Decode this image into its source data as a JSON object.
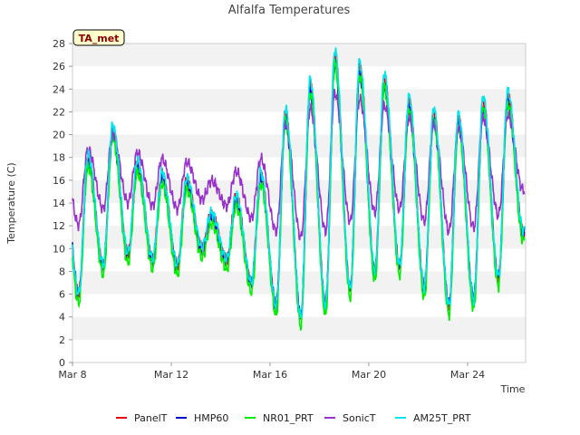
{
  "chart_data": {
    "type": "line",
    "title": "Alfalfa Temperatures",
    "badge": "TA_met",
    "xlabel": "Time",
    "ylabel": "Temperature (C)",
    "xlim": [
      0,
      18.35
    ],
    "ylim": [
      0,
      28
    ],
    "y_ticks": [
      0,
      2,
      4,
      6,
      8,
      10,
      12,
      14,
      16,
      18,
      20,
      22,
      24,
      26,
      28
    ],
    "x_ticks": [
      {
        "value": 0,
        "label": "Mar 8"
      },
      {
        "value": 4,
        "label": "Mar 12"
      },
      {
        "value": 8,
        "label": "Mar 16"
      },
      {
        "value": 12,
        "label": "Mar 20"
      },
      {
        "value": 16,
        "label": "Mar 24"
      }
    ],
    "grid": true,
    "legend_position": "bottom",
    "daily_extremes": [
      {
        "day": 0,
        "min": 6.0,
        "max": 18.0
      },
      {
        "day": 1,
        "min": 8.5,
        "max": 20.5
      },
      {
        "day": 2,
        "min": 9.5,
        "max": 17.5
      },
      {
        "day": 3,
        "min": 9.0,
        "max": 16.5
      },
      {
        "day": 4,
        "min": 8.5,
        "max": 16.0
      },
      {
        "day": 5,
        "min": 10.0,
        "max": 13.0
      },
      {
        "day": 6,
        "min": 9.0,
        "max": 14.5
      },
      {
        "day": 7,
        "min": 7.0,
        "max": 16.5
      },
      {
        "day": 8,
        "min": 5.0,
        "max": 22.0
      },
      {
        "day": 9,
        "min": 4.0,
        "max": 24.5
      },
      {
        "day": 10,
        "min": 5.0,
        "max": 27.0
      },
      {
        "day": 11,
        "min": 6.5,
        "max": 26.0
      },
      {
        "day": 12,
        "min": 8.0,
        "max": 25.0
      },
      {
        "day": 13,
        "min": 8.5,
        "max": 23.0
      },
      {
        "day": 14,
        "min": 6.5,
        "max": 22.0
      },
      {
        "day": 15,
        "min": 5.0,
        "max": 21.5
      },
      {
        "day": 16,
        "min": 5.5,
        "max": 23.0
      },
      {
        "day": 17,
        "min": 7.5,
        "max": 23.5
      },
      {
        "day": 18,
        "min": 11.5,
        "max": 12.0
      }
    ],
    "series": [
      {
        "name": "PanelT",
        "color": "#e8000b",
        "offset": 0.0,
        "amp": 1.0
      },
      {
        "name": "HMP60",
        "color": "#0000cc",
        "offset": -0.3,
        "amp": 0.95
      },
      {
        "name": "NR01_PRT",
        "color": "#00ee00",
        "offset": -0.8,
        "amp": 1.0
      },
      {
        "name": "SonicT",
        "color": "#9932cc",
        "offset": 2.5,
        "amp": 0.55
      },
      {
        "name": "AM25T_PRT",
        "color": "#00e5ee",
        "offset": 0.2,
        "amp": 1.02
      }
    ]
  }
}
